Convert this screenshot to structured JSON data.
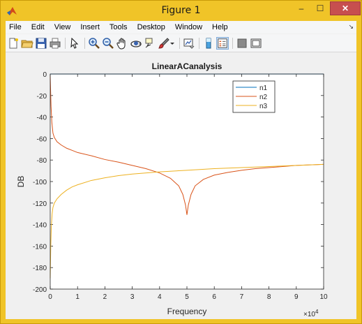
{
  "window": {
    "title": "Figure 1",
    "controls": {
      "minimize": "–",
      "maximize": "☐",
      "close": "✕"
    }
  },
  "menubar": {
    "items": [
      "File",
      "Edit",
      "View",
      "Insert",
      "Tools",
      "Desktop",
      "Window",
      "Help"
    ],
    "overflow_icon": "arrow-icon"
  },
  "toolbar": {
    "buttons": [
      "new-figure-icon",
      "open-file-icon",
      "save-icon",
      "print-icon",
      "edit-plot-icon",
      "zoom-in-icon",
      "zoom-out-icon",
      "pan-icon",
      "rotate-3d-icon",
      "data-cursor-icon",
      "brush-icon",
      "dropdown-arrow-icon",
      "link-plot-icon",
      "insert-colorbar-icon",
      "insert-legend-icon",
      "hide-plot-tools-icon",
      "show-plot-tools-icon"
    ]
  },
  "chart_data": {
    "type": "line",
    "title": "LinearACanalysis",
    "xlabel": "Frequency",
    "ylabel": "DB",
    "x_multiplier_label": "×10",
    "x_multiplier_exponent": "4",
    "xlim": [
      0,
      10
    ],
    "ylim": [
      -200,
      0
    ],
    "xticks": [
      0,
      1,
      2,
      3,
      4,
      5,
      6,
      7,
      8,
      9,
      10
    ],
    "yticks": [
      0,
      -20,
      -40,
      -60,
      -80,
      -100,
      -120,
      -140,
      -160,
      -180,
      -200
    ],
    "legend_position": "top-right",
    "grid": false,
    "series": [
      {
        "name": "n1",
        "color": "#0072bd",
        "points": [
          [
            0,
            0
          ],
          [
            10,
            0
          ]
        ]
      },
      {
        "name": "n2",
        "color": "#d95319",
        "points": [
          [
            0.0,
            -2
          ],
          [
            0.03,
            -30
          ],
          [
            0.06,
            -45
          ],
          [
            0.1,
            -55
          ],
          [
            0.15,
            -59
          ],
          [
            0.25,
            -63
          ],
          [
            0.4,
            -66
          ],
          [
            0.6,
            -69
          ],
          [
            0.8,
            -71
          ],
          [
            1.0,
            -73
          ],
          [
            1.5,
            -76
          ],
          [
            2.0,
            -79.5
          ],
          [
            2.5,
            -82
          ],
          [
            3.0,
            -85
          ],
          [
            3.5,
            -88
          ],
          [
            4.0,
            -92
          ],
          [
            4.4,
            -97
          ],
          [
            4.7,
            -104
          ],
          [
            4.85,
            -112
          ],
          [
            4.95,
            -122
          ],
          [
            5.0,
            -131
          ],
          [
            5.05,
            -122
          ],
          [
            5.15,
            -112
          ],
          [
            5.3,
            -104
          ],
          [
            5.6,
            -98
          ],
          [
            6.0,
            -94
          ],
          [
            6.5,
            -91.5
          ],
          [
            7.0,
            -89.5
          ],
          [
            7.5,
            -88
          ],
          [
            8.0,
            -87
          ],
          [
            8.5,
            -86
          ],
          [
            9.0,
            -85
          ],
          [
            9.5,
            -84.5
          ],
          [
            10.0,
            -84
          ]
        ]
      },
      {
        "name": "n3",
        "color": "#edb120",
        "points": [
          [
            0.0,
            -190
          ],
          [
            0.02,
            -160
          ],
          [
            0.04,
            -142
          ],
          [
            0.07,
            -130
          ],
          [
            0.1,
            -124
          ],
          [
            0.15,
            -120
          ],
          [
            0.25,
            -116
          ],
          [
            0.4,
            -112
          ],
          [
            0.6,
            -108
          ],
          [
            0.8,
            -105
          ],
          [
            1.0,
            -103
          ],
          [
            1.5,
            -99
          ],
          [
            2.0,
            -96.5
          ],
          [
            2.5,
            -94.5
          ],
          [
            3.0,
            -93
          ],
          [
            4.0,
            -91
          ],
          [
            5.0,
            -89.5
          ],
          [
            6.0,
            -88
          ],
          [
            7.0,
            -87
          ],
          [
            8.0,
            -86
          ],
          [
            9.0,
            -85
          ],
          [
            10.0,
            -84
          ]
        ]
      }
    ]
  }
}
